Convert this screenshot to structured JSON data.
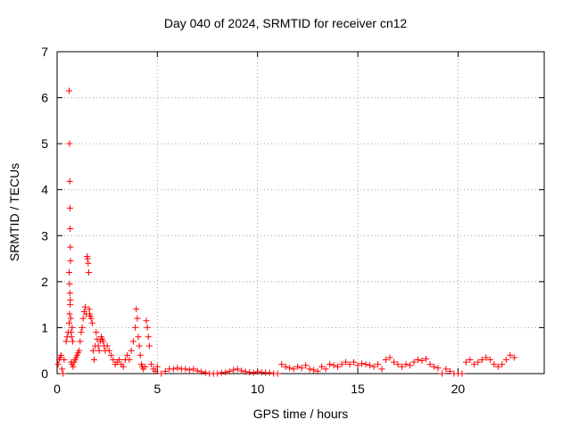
{
  "chart_data": {
    "type": "scatter",
    "title": "Day 040 of 2024, SRMTID for receiver cn12",
    "xlabel": "GPS time / hours",
    "ylabel": "SRMTID / TECUs",
    "xlim": [
      0,
      24.3
    ],
    "ylim": [
      0,
      7
    ],
    "xticks": [
      "0",
      "5",
      "10",
      "15",
      "20"
    ],
    "yticks": [
      "0",
      "1",
      "2",
      "3",
      "4",
      "5",
      "6",
      "7"
    ],
    "grid": true,
    "marker": "plus",
    "color": "#ff0000",
    "series": [
      {
        "name": "SRMTID",
        "x": [
          0.05,
          0.1,
          0.15,
          0.2,
          0.25,
          0.3,
          0.35,
          0.45,
          0.5,
          0.55,
          0.6,
          0.62,
          0.65,
          0.68,
          0.7,
          0.72,
          0.75,
          0.78,
          0.6,
          0.62,
          0.63,
          0.64,
          0.65,
          0.66,
          0.67,
          0.6,
          0.62,
          0.64,
          0.66,
          0.7,
          0.75,
          0.8,
          0.85,
          0.9,
          0.95,
          1.0,
          1.05,
          1.1,
          1.15,
          1.2,
          1.25,
          1.3,
          1.35,
          1.4,
          1.45,
          1.5,
          1.52,
          1.55,
          1.58,
          1.6,
          1.62,
          1.65,
          1.7,
          1.75,
          1.8,
          1.85,
          1.9,
          1.95,
          2.0,
          2.05,
          2.1,
          2.15,
          2.2,
          2.25,
          2.3,
          2.35,
          2.4,
          2.5,
          2.6,
          2.7,
          2.8,
          2.9,
          3.0,
          3.1,
          3.2,
          3.3,
          3.4,
          3.5,
          3.6,
          3.7,
          3.8,
          3.9,
          3.95,
          4.0,
          4.05,
          4.1,
          4.15,
          4.2,
          4.25,
          4.3,
          4.4,
          4.45,
          4.5,
          4.55,
          4.6,
          4.7,
          4.8,
          4.9,
          5.0,
          5.2,
          5.4,
          5.6,
          5.8,
          6.0,
          6.2,
          6.4,
          6.6,
          6.8,
          7.0,
          7.2,
          7.4,
          7.6,
          7.8,
          8.0,
          8.2,
          8.4,
          8.6,
          8.8,
          9.0,
          9.2,
          9.4,
          9.6,
          9.8,
          10.0,
          10.2,
          10.4,
          10.6,
          10.8,
          11.0,
          11.2,
          11.4,
          11.6,
          11.8,
          12.0,
          12.2,
          12.4,
          12.6,
          12.8,
          13.0,
          13.2,
          13.4,
          13.6,
          13.8,
          14.0,
          14.2,
          14.4,
          14.6,
          14.8,
          15.0,
          15.2,
          15.4,
          15.6,
          15.8,
          16.0,
          16.2,
          16.4,
          16.6,
          16.8,
          17.0,
          17.2,
          17.4,
          17.6,
          17.8,
          18.0,
          18.2,
          18.4,
          18.6,
          18.8,
          19.0,
          19.2,
          19.4,
          19.6,
          19.8,
          20.0,
          20.2,
          20.4,
          20.6,
          20.8,
          21.0,
          21.2,
          21.4,
          21.6,
          21.8,
          22.0,
          22.2,
          22.4,
          22.6,
          22.8
        ],
        "y": [
          0.2,
          0.3,
          0.35,
          0.4,
          0.1,
          0.0,
          0.3,
          0.7,
          0.8,
          0.9,
          1.1,
          1.3,
          1.5,
          1.2,
          0.9,
          0.8,
          1.0,
          0.7,
          6.15,
          5.0,
          4.18,
          3.6,
          3.15,
          2.75,
          2.45,
          2.2,
          1.95,
          1.75,
          1.6,
          0.25,
          0.2,
          0.15,
          0.25,
          0.3,
          0.35,
          0.4,
          0.45,
          0.5,
          0.7,
          0.9,
          1.0,
          1.2,
          1.35,
          1.45,
          1.3,
          2.55,
          2.5,
          2.4,
          2.2,
          1.4,
          1.3,
          1.25,
          1.2,
          1.1,
          0.5,
          0.3,
          0.6,
          0.9,
          0.75,
          0.6,
          0.5,
          0.7,
          0.8,
          0.75,
          0.7,
          0.6,
          0.5,
          0.6,
          0.5,
          0.4,
          0.3,
          0.2,
          0.25,
          0.3,
          0.2,
          0.15,
          0.3,
          0.4,
          0.3,
          0.5,
          0.7,
          1.0,
          1.4,
          1.2,
          0.8,
          0.6,
          0.4,
          0.2,
          0.15,
          0.1,
          0.15,
          1.15,
          1.0,
          0.8,
          0.6,
          0.2,
          0.1,
          0.05,
          0.15,
          0.0,
          0.05,
          0.1,
          0.1,
          0.12,
          0.1,
          0.1,
          0.08,
          0.1,
          0.06,
          0.04,
          0.02,
          0.0,
          0.0,
          0.0,
          0.02,
          0.03,
          0.05,
          0.08,
          0.1,
          0.06,
          0.04,
          0.03,
          0.02,
          0.04,
          0.03,
          0.02,
          0.02,
          0.0,
          0.0,
          0.2,
          0.15,
          0.12,
          0.1,
          0.15,
          0.12,
          0.18,
          0.1,
          0.08,
          0.05,
          0.15,
          0.1,
          0.2,
          0.18,
          0.15,
          0.2,
          0.25,
          0.2,
          0.25,
          0.18,
          0.22,
          0.2,
          0.18,
          0.15,
          0.2,
          0.1,
          0.3,
          0.35,
          0.25,
          0.2,
          0.15,
          0.2,
          0.18,
          0.25,
          0.3,
          0.28,
          0.32,
          0.2,
          0.15,
          0.12,
          0.0,
          0.1,
          0.05,
          0.0,
          0.0,
          0.0,
          0.25,
          0.3,
          0.2,
          0.25,
          0.3,
          0.35,
          0.3,
          0.2,
          0.15,
          0.2,
          0.3,
          0.4,
          0.35
        ]
      }
    ]
  }
}
